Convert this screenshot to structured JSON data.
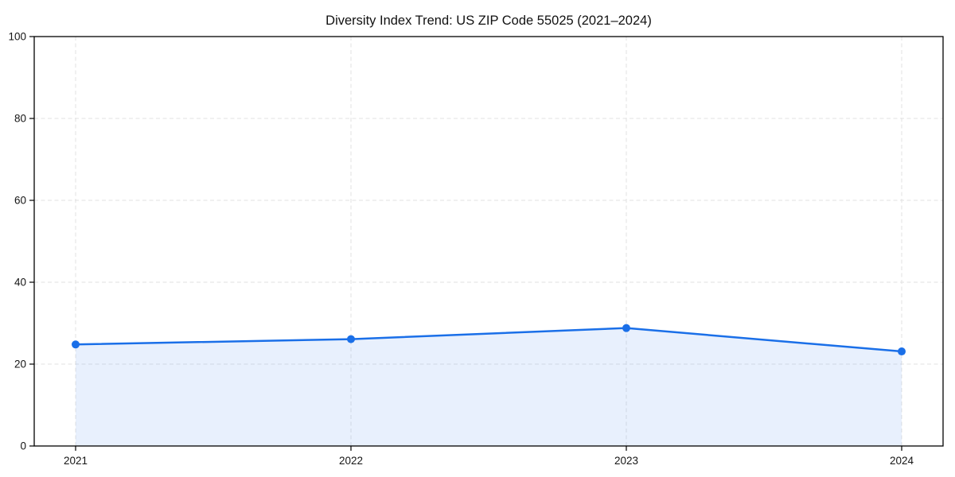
{
  "chart_data": {
    "type": "area",
    "title": "Diversity Index Trend: US ZIP Code 55025 (2021–2024)",
    "categories": [
      "2021",
      "2022",
      "2023",
      "2024"
    ],
    "values": [
      24.8,
      26.1,
      28.8,
      23.1
    ],
    "series": [
      {
        "name": "Diversity Index",
        "values": [
          24.8,
          26.1,
          28.8,
          23.1
        ]
      }
    ],
    "xlabel": "",
    "ylabel": "",
    "ylim": [
      0,
      100
    ],
    "yticks": [
      0,
      20,
      40,
      60,
      80,
      100
    ],
    "grid": true,
    "grid_style": "dashed",
    "legend": "none",
    "marker": "circle",
    "colors": {
      "line": "#1a6fe8",
      "marker": "#1a6fe8",
      "fill": "rgba(26,111,232,0.10)",
      "grid": "#e2e2e2",
      "axis": "#000000",
      "text": "#151515",
      "background": "#ffffff"
    }
  }
}
